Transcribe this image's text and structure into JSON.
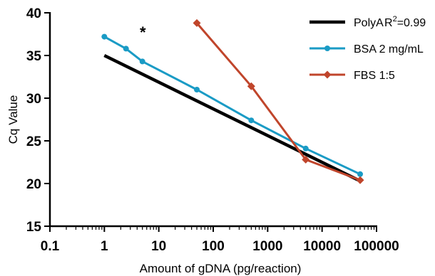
{
  "chart_data": {
    "type": "line",
    "xscale": "log",
    "xlim": [
      0.1,
      100000
    ],
    "ylim": [
      15,
      40
    ],
    "xlabel": "Amount of gDNA (pg/reaction)",
    "ylabel": "Cq Value",
    "x_ticks": [
      "0.1",
      "1",
      "10",
      "100",
      "1000",
      "10000",
      "100000"
    ],
    "y_ticks": [
      "15",
      "20",
      "25",
      "30",
      "35",
      "40"
    ],
    "legend_position": "top-right",
    "annotation": "*",
    "series": [
      {
        "name": "PolyA",
        "extra_label_prefix": "R",
        "extra_label_sup": "2",
        "extra_label_suffix": "=0.99",
        "color": "#000000",
        "marker": "none",
        "x": [
          1,
          50000
        ],
        "y": [
          35.0,
          20.3
        ]
      },
      {
        "name": "BSA 2 mg/mL",
        "color": "#1a9bc5",
        "marker": "circle",
        "x": [
          1,
          2.5,
          5,
          50,
          500,
          5000,
          50000
        ],
        "y": [
          37.2,
          35.8,
          34.3,
          31.0,
          27.4,
          24.1,
          21.1
        ]
      },
      {
        "name": "FBS 1:5",
        "color": "#c0452b",
        "marker": "diamond",
        "x": [
          50,
          500,
          5000,
          50000
        ],
        "y": [
          38.8,
          31.4,
          22.8,
          20.4
        ]
      }
    ]
  }
}
